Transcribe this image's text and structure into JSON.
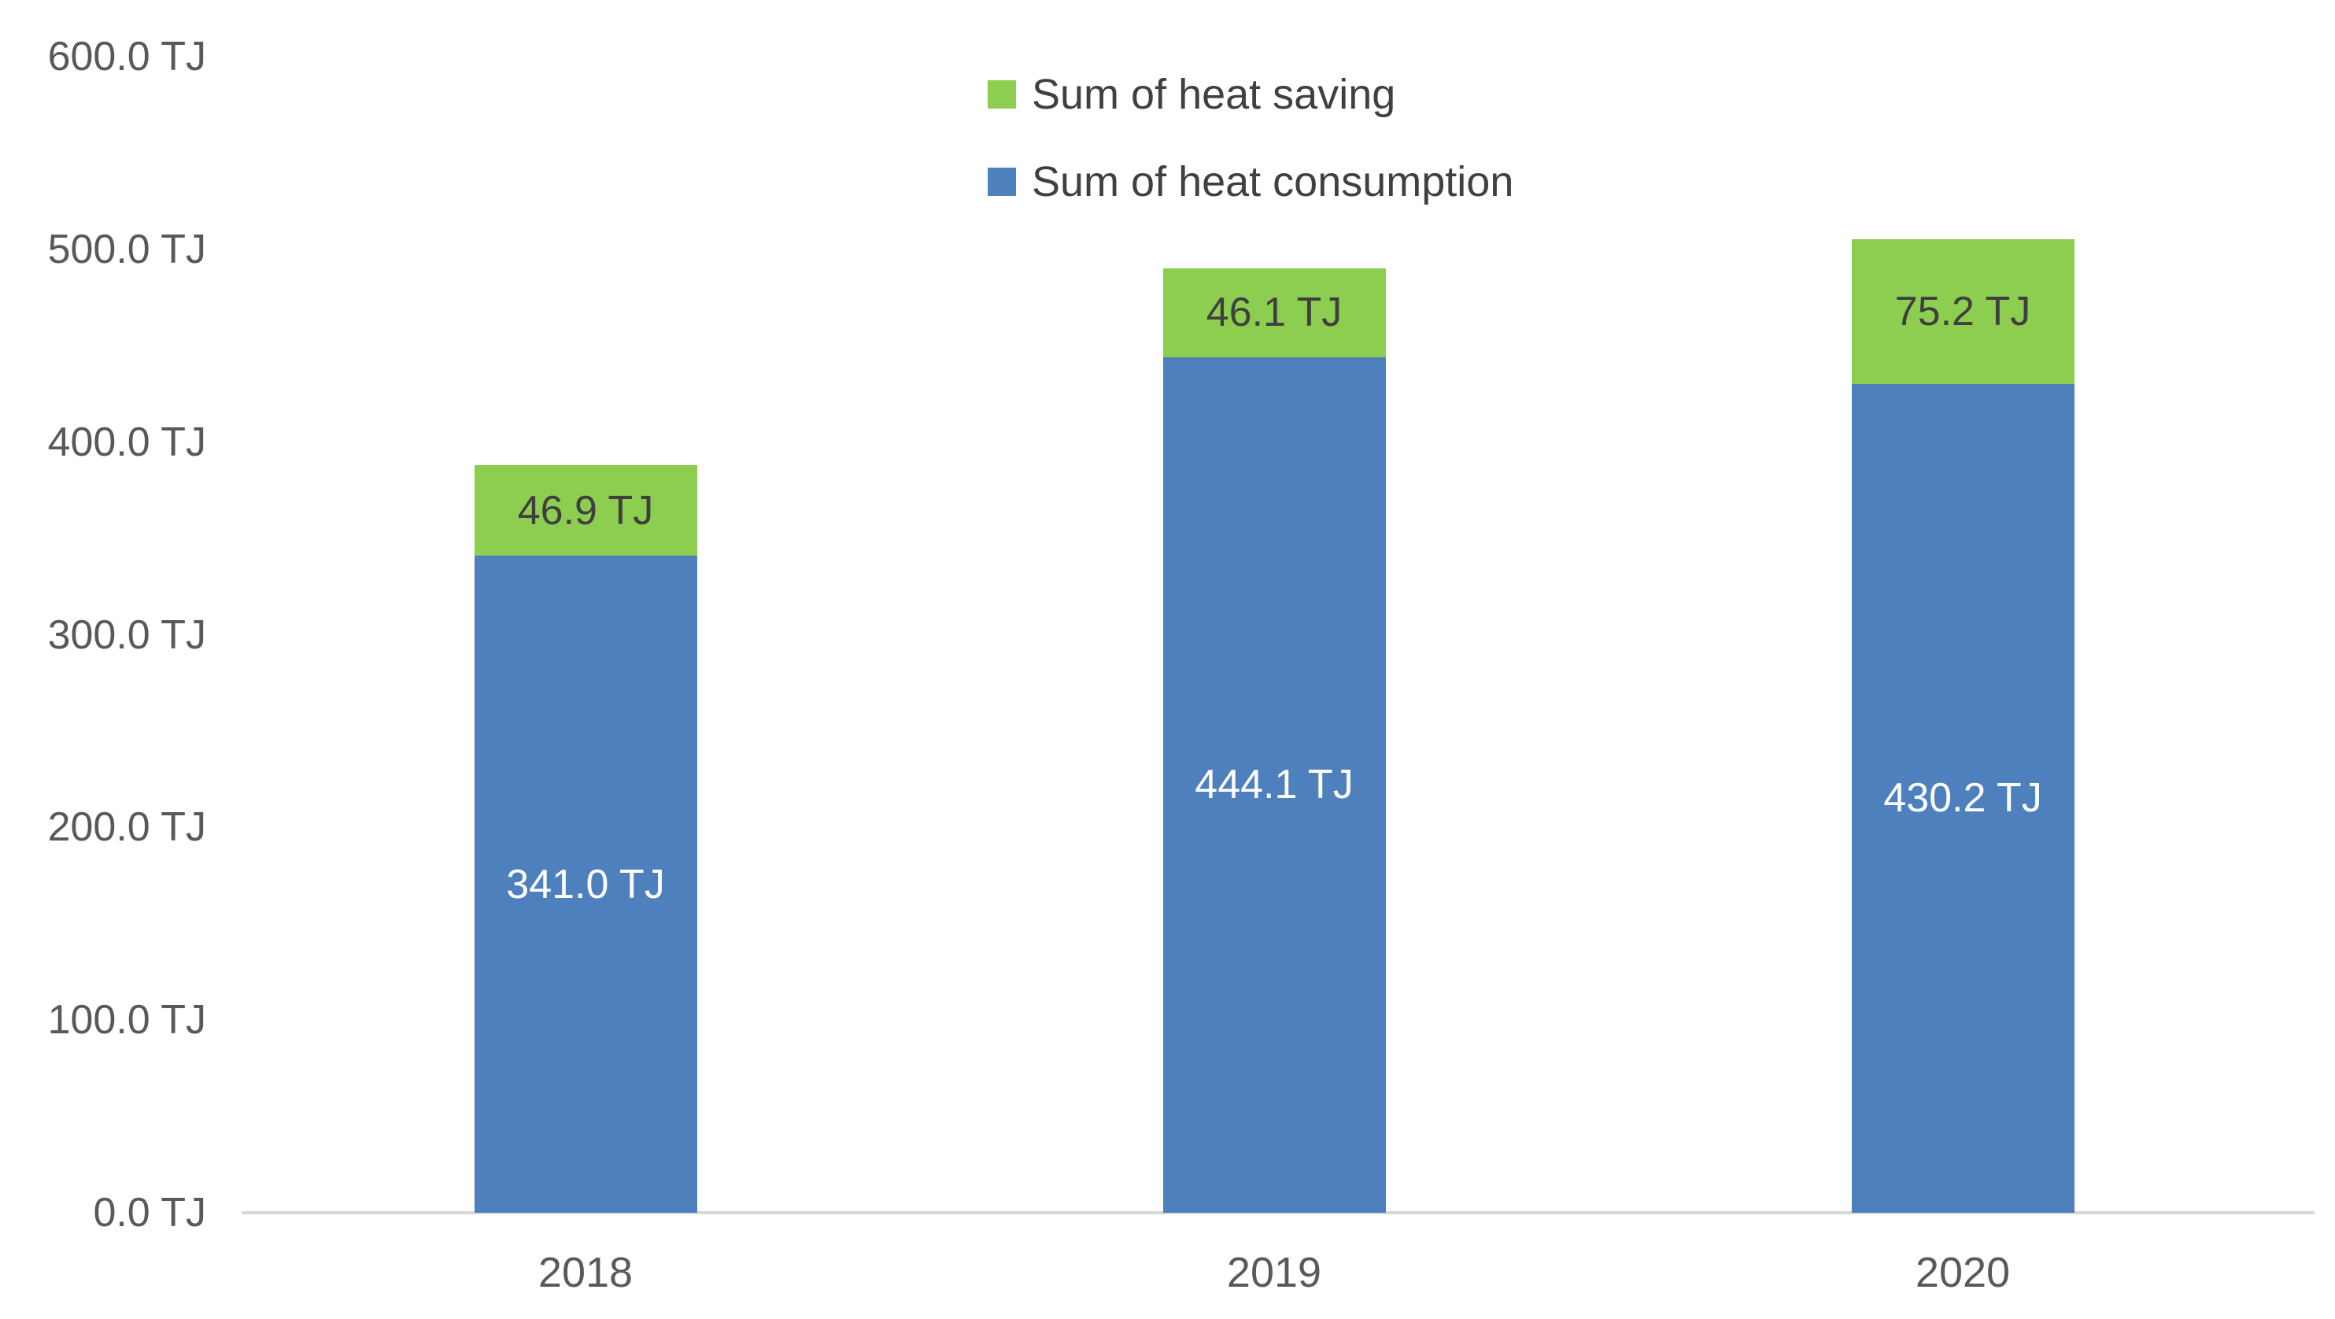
{
  "chart_data": {
    "type": "bar",
    "stacked": true,
    "title": "",
    "unit": "TJ",
    "categories": [
      "2018",
      "2019",
      "2020"
    ],
    "series": [
      {
        "name": "Sum of heat consumption",
        "color": "#4E80BD",
        "label_color": "#FFFFFF",
        "values": [
          341.0,
          444.1,
          430.2
        ],
        "labels": [
          "341.0 TJ",
          "444.1 TJ",
          "430.2 TJ"
        ]
      },
      {
        "name": "Sum of heat saving",
        "color": "#8DCE50",
        "label_color": "#3F3F3F",
        "values": [
          46.9,
          46.1,
          75.2
        ],
        "labels": [
          "46.9 TJ",
          "46.1 TJ",
          "75.2 TJ"
        ]
      }
    ],
    "totals": [
      387.9,
      490.2,
      505.4
    ],
    "legend": {
      "position": "top-center",
      "items": [
        {
          "label": "Sum of heat saving",
          "color": "#8DCE50"
        },
        {
          "label": "Sum of heat consumption",
          "color": "#4E80BD"
        }
      ]
    },
    "y_axis": {
      "min": 0,
      "max": 600,
      "tick_step": 100,
      "tick_values": [
        600,
        500,
        400,
        300,
        200,
        100,
        0
      ],
      "tick_labels": [
        "600.0 TJ",
        "500.0 TJ",
        "400.0 TJ",
        "300.0 TJ",
        "200.0 TJ",
        "100.0 TJ",
        "0.0 TJ"
      ],
      "axis_line_color": "#D8D8D8",
      "tick_label_color": "#595959"
    },
    "x_axis": {
      "labels": [
        "2018",
        "2019",
        "2020"
      ],
      "label_color": "#595959"
    },
    "grid": false,
    "background": "#FFFFFF"
  }
}
